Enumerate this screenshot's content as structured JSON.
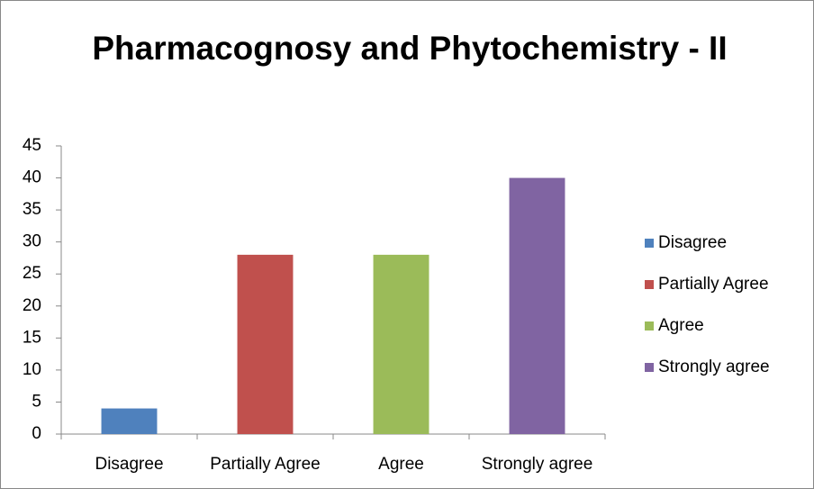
{
  "chart_data": {
    "type": "bar",
    "title": "Pharmacognosy and Phytochemistry - II",
    "categories": [
      "Disagree",
      "Partially Agree",
      "Agree",
      "Strongly agree"
    ],
    "values": [
      4,
      28,
      28,
      40
    ],
    "colors": [
      "#4f81bd",
      "#c0504d",
      "#9bbb59",
      "#8064a2"
    ],
    "ylim": [
      0,
      45
    ],
    "yticks": [
      0,
      5,
      10,
      15,
      20,
      25,
      30,
      35,
      40,
      45
    ],
    "grid": false,
    "legend": "right"
  }
}
